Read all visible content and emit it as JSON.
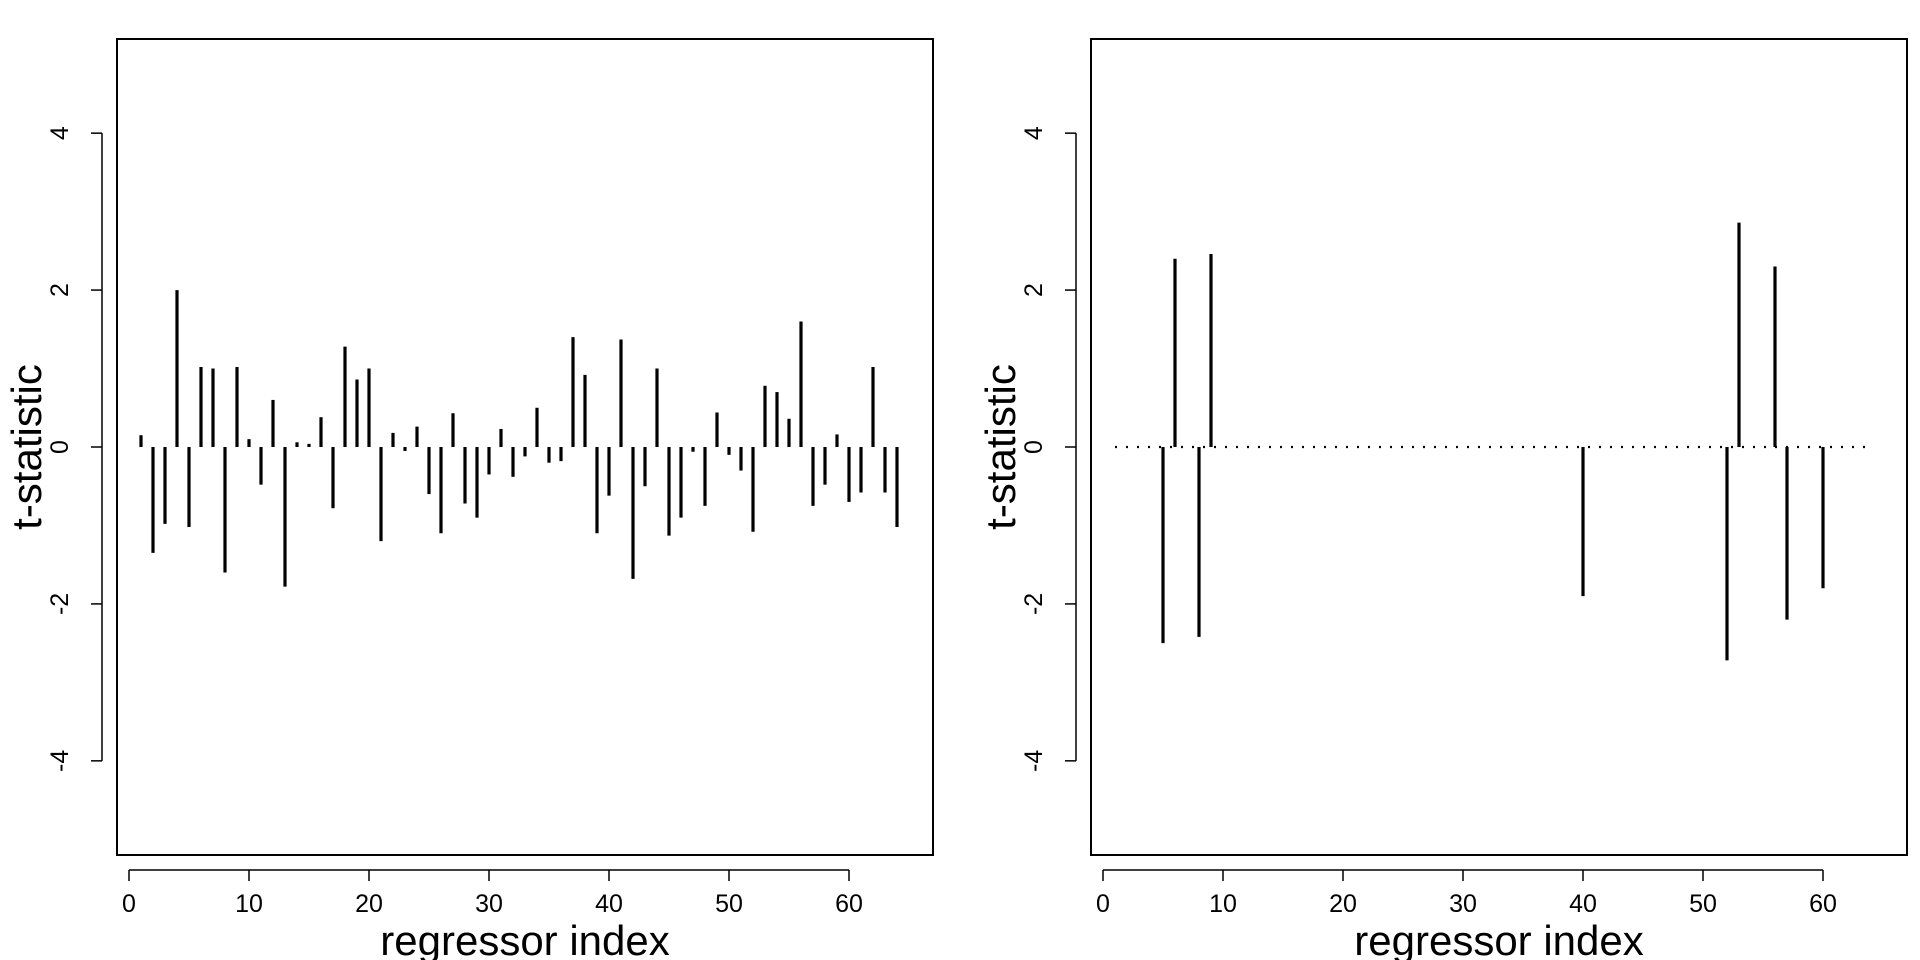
{
  "chart_data": [
    {
      "type": "bar",
      "style": "vertical needle (spike) plot from zero",
      "xlabel": "regressor index",
      "ylabel": "t-statistic",
      "xlim": [
        -1,
        67
      ],
      "ylim": [
        -5.2,
        5.2
      ],
      "xticks": [
        0,
        10,
        20,
        30,
        40,
        50,
        60
      ],
      "yticks": [
        -4,
        -2,
        0,
        2,
        4
      ],
      "grid": false,
      "legend": "none",
      "zero_line": false,
      "x": [
        1,
        2,
        3,
        4,
        5,
        6,
        7,
        8,
        9,
        10,
        11,
        12,
        13,
        14,
        15,
        16,
        17,
        18,
        19,
        20,
        21,
        22,
        23,
        24,
        25,
        26,
        27,
        28,
        29,
        30,
        31,
        32,
        33,
        34,
        35,
        36,
        37,
        38,
        39,
        40,
        41,
        42,
        43,
        44,
        45,
        46,
        47,
        48,
        49,
        50,
        51,
        52,
        53,
        54,
        55,
        56,
        57,
        58,
        59,
        60,
        61,
        62,
        63,
        64
      ],
      "values": [
        0.15,
        -1.35,
        -0.98,
        2.0,
        -1.02,
        1.02,
        1.0,
        -1.6,
        1.02,
        0.1,
        -0.48,
        0.6,
        -1.78,
        0.06,
        0.04,
        0.38,
        -0.78,
        1.28,
        0.86,
        1.0,
        -1.2,
        0.18,
        -0.05,
        0.26,
        -0.6,
        -1.1,
        0.43,
        -0.72,
        -0.9,
        -0.35,
        0.23,
        -0.38,
        -0.12,
        0.5,
        -0.2,
        -0.18,
        1.4,
        0.92,
        -1.1,
        -0.62,
        1.37,
        -1.68,
        -0.5,
        1.0,
        -1.13,
        -0.9,
        -0.06,
        -0.75,
        0.44,
        -0.1,
        -0.3,
        -1.08,
        0.78,
        0.7,
        0.36,
        1.6,
        -0.75,
        -0.48,
        0.16,
        -0.7,
        -0.58,
        1.02,
        -0.58,
        -1.02
      ]
    },
    {
      "type": "bar",
      "style": "vertical needle (spike) plot from zero",
      "xlabel": "regressor index",
      "ylabel": "t-statistic",
      "xlim": [
        -1,
        67
      ],
      "ylim": [
        -5.2,
        5.2
      ],
      "xticks": [
        0,
        10,
        20,
        30,
        40,
        50,
        60
      ],
      "yticks": [
        -4,
        -2,
        0,
        2,
        4
      ],
      "grid": false,
      "legend": "none",
      "zero_line": true,
      "zero_line_style": "dotted",
      "zero_line_range": [
        1,
        64
      ],
      "x": [
        5,
        6,
        8,
        9,
        40,
        52,
        53,
        56,
        57,
        60
      ],
      "values": [
        -2.5,
        2.4,
        -2.42,
        2.46,
        -1.9,
        -2.72,
        2.86,
        2.3,
        -2.2,
        -1.8
      ]
    }
  ]
}
